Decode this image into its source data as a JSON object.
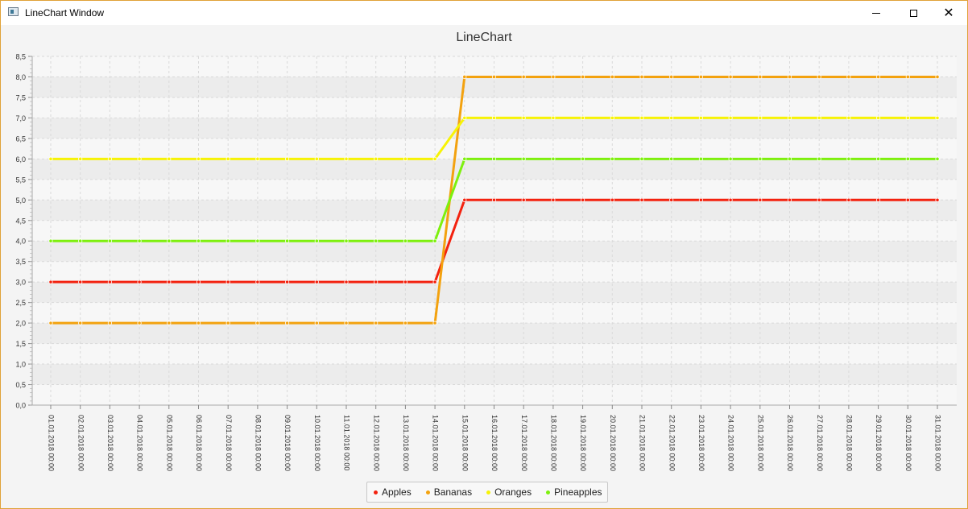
{
  "window": {
    "title": "LineChart Window",
    "icon": "window-app-icon",
    "controls": [
      "minimize-icon",
      "maximize-icon",
      "close-icon"
    ],
    "close_glyph": "✕"
  },
  "chart_data": {
    "type": "line",
    "title": "LineChart",
    "xlabel": "",
    "ylabel": "",
    "categories": [
      "01.01.2018 00:00",
      "02.01.2018 00:00",
      "03.01.2018 00:00",
      "04.01.2018 00:00",
      "05.01.2018 00:00",
      "06.01.2018 00:00",
      "07.01.2018 00:00",
      "08.01.2018 00:00",
      "09.01.2018 00:00",
      "10.01.2018 00:00",
      "11.01.2018 00:00",
      "12.01.2018 00:00",
      "13.01.2018 00:00",
      "14.01.2018 00:00",
      "15.01.2018 00:00",
      "16.01.2018 00:00",
      "17.01.2018 00:00",
      "18.01.2018 00:00",
      "19.01.2018 00:00",
      "20.01.2018 00:00",
      "21.01.2018 00:00",
      "22.01.2018 00:00",
      "23.01.2018 00:00",
      "24.01.2018 00:00",
      "25.01.2018 00:00",
      "26.01.2018 00:00",
      "27.01.2018 00:00",
      "28.01.2018 00:00",
      "29.01.2018 00:00",
      "30.01.2018 00:00",
      "31.01.2018 00:00"
    ],
    "ylim": [
      0,
      8.5
    ],
    "y_ticks": [
      "0,0",
      "0,5",
      "1,0",
      "1,5",
      "2,0",
      "2,5",
      "3,0",
      "3,5",
      "4,0",
      "4,5",
      "5,0",
      "5,5",
      "6,0",
      "6,5",
      "7,0",
      "7,5",
      "8,0",
      "8,5"
    ],
    "grid": true,
    "legend_position": "bottom-center",
    "series": [
      {
        "name": "Apples",
        "color": "#f3220f",
        "values": [
          3,
          3,
          3,
          3,
          3,
          3,
          3,
          3,
          3,
          3,
          3,
          3,
          3,
          3,
          5,
          5,
          5,
          5,
          5,
          5,
          5,
          5,
          5,
          5,
          5,
          5,
          5,
          5,
          5,
          5,
          5
        ]
      },
      {
        "name": "Bananas",
        "color": "#f3a20f",
        "values": [
          2,
          2,
          2,
          2,
          2,
          2,
          2,
          2,
          2,
          2,
          2,
          2,
          2,
          2,
          8,
          8,
          8,
          8,
          8,
          8,
          8,
          8,
          8,
          8,
          8,
          8,
          8,
          8,
          8,
          8,
          8
        ]
      },
      {
        "name": "Oranges",
        "color": "#f7f306",
        "values": [
          6,
          6,
          6,
          6,
          6,
          6,
          6,
          6,
          6,
          6,
          6,
          6,
          6,
          6,
          7,
          7,
          7,
          7,
          7,
          7,
          7,
          7,
          7,
          7,
          7,
          7,
          7,
          7,
          7,
          7,
          7
        ]
      },
      {
        "name": "Pineapples",
        "color": "#7ef00e",
        "values": [
          4,
          4,
          4,
          4,
          4,
          4,
          4,
          4,
          4,
          4,
          4,
          4,
          4,
          4,
          6,
          6,
          6,
          6,
          6,
          6,
          6,
          6,
          6,
          6,
          6,
          6,
          6,
          6,
          6,
          6,
          6
        ]
      }
    ]
  }
}
